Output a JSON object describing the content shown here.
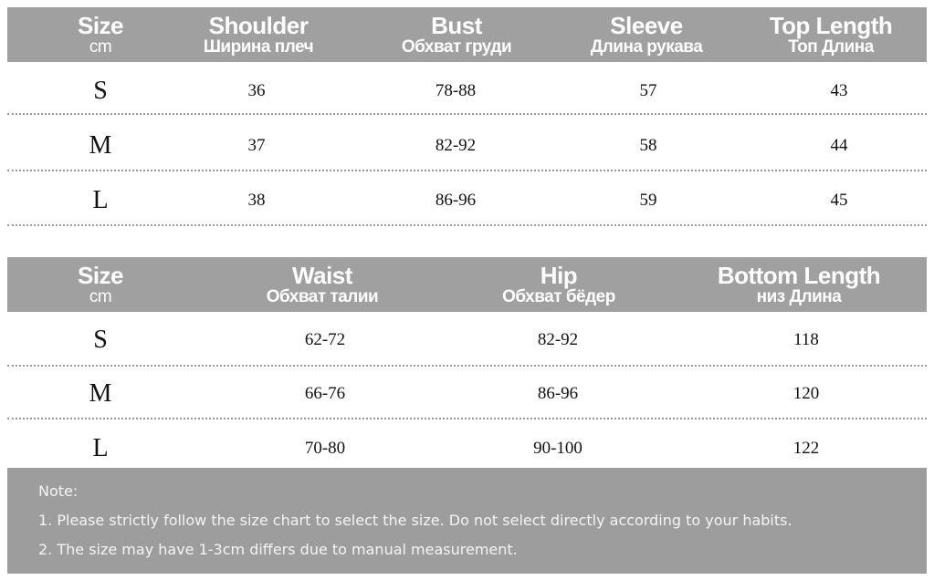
{
  "top_table": {
    "headers": [
      {
        "main": "Size",
        "sub": "cm"
      },
      {
        "main": "Shoulder",
        "sub": "Ширина плеч"
      },
      {
        "main": "Bust",
        "sub": "Обхват груди"
      },
      {
        "main": "Sleeve",
        "sub": "Длина рукава"
      },
      {
        "main": "Top Length",
        "sub": "Топ Длина"
      }
    ],
    "rows": [
      [
        "S",
        "36",
        "78-88",
        "57",
        "43"
      ],
      [
        "M",
        "37",
        "82-92",
        "58",
        "44"
      ],
      [
        "L",
        "38",
        "86-96",
        "59",
        "45"
      ]
    ]
  },
  "bottom_table": {
    "headers": [
      {
        "main": "Size",
        "sub": "cm"
      },
      {
        "main": "Waist",
        "sub": "Обхват талии"
      },
      {
        "main": "Hip",
        "sub": "Обхват бёдер"
      },
      {
        "main": "Bottom Length",
        "sub": "низ Длина"
      }
    ],
    "rows": [
      [
        "S",
        "62-72",
        "82-92",
        "118"
      ],
      [
        "M",
        "66-76",
        "86-96",
        "120"
      ],
      [
        "L",
        "70-80",
        "90-100",
        "122"
      ]
    ]
  },
  "note": {
    "title": "Note:",
    "lines": [
      "1. Please strictly follow the size chart to select the size. Do not select directly according to your habits.",
      "2. The size may have 1-3cm differs due to manual measurement."
    ]
  },
  "colors": {
    "header_bg": "#a0a0a0",
    "note_bg": "#9d9d9d",
    "header_text": "#ffffff"
  }
}
